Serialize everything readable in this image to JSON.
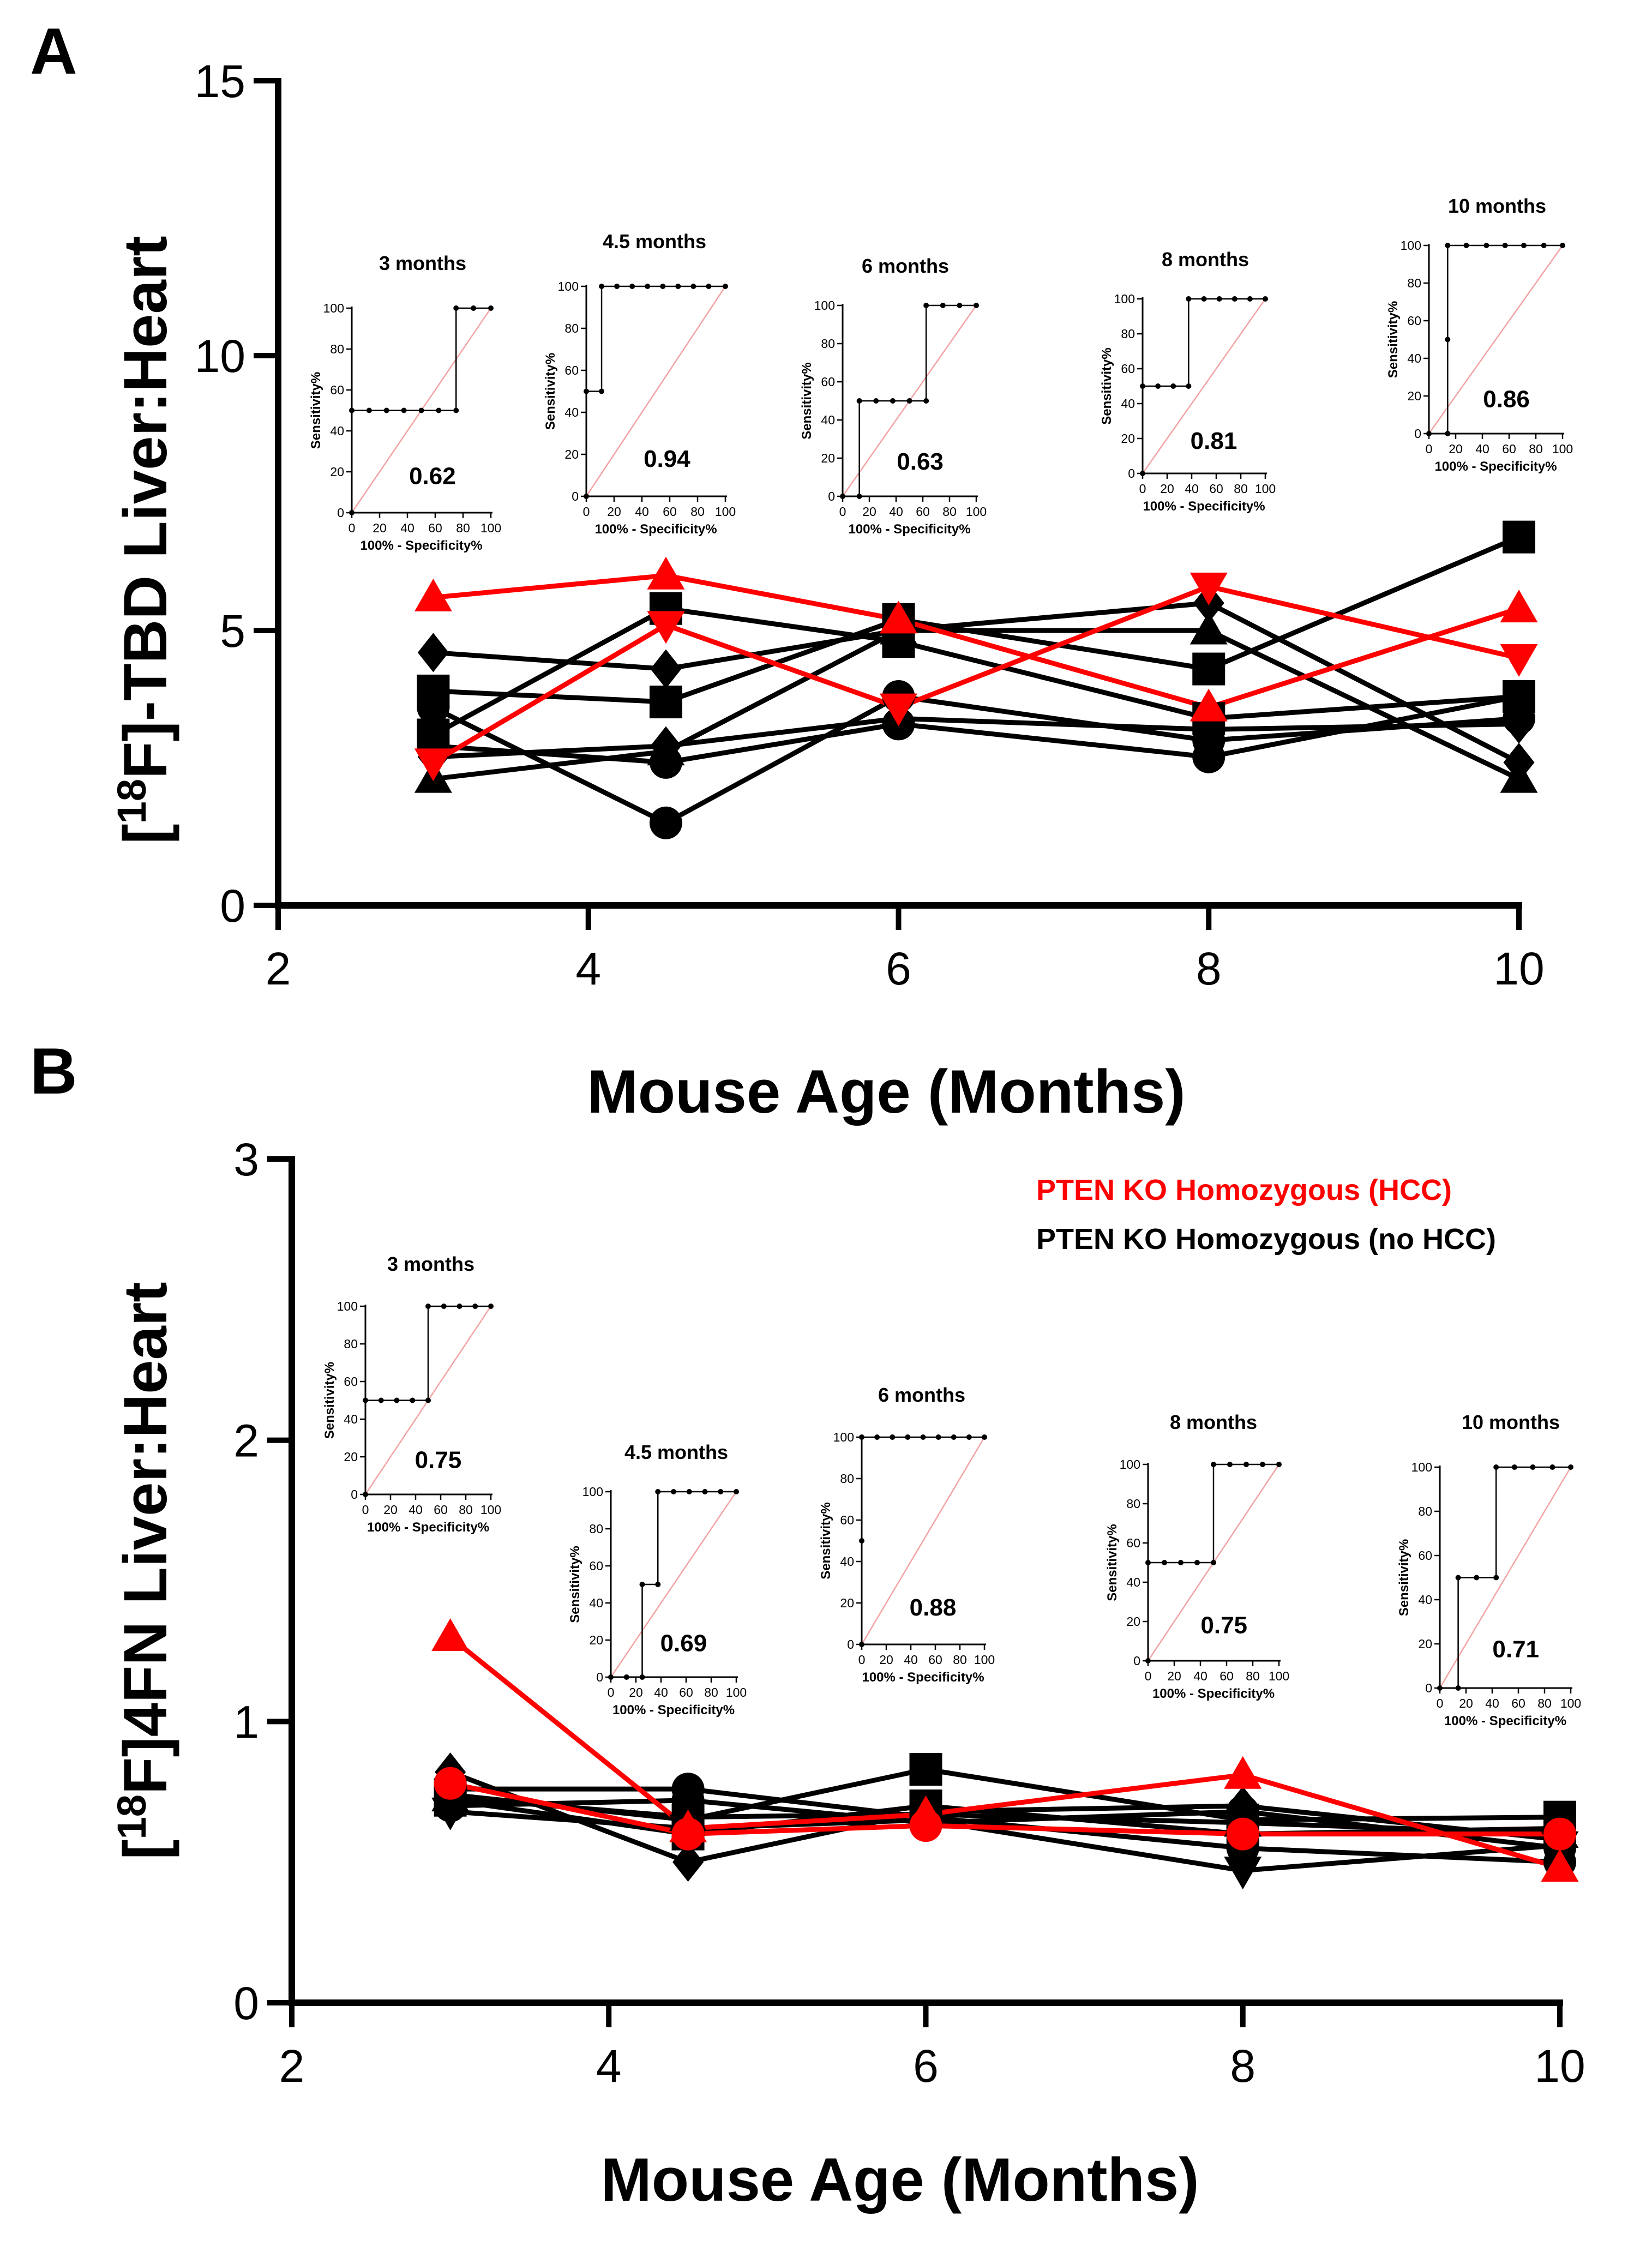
{
  "colors": {
    "hcc": "#ff0000",
    "no_hcc": "#000000",
    "diagonal": "#f3a3a3"
  },
  "chart_data": [
    {
      "panel": "A",
      "type": "line",
      "xlabel": "Mouse Age (Months)",
      "ylabel_parts": [
        "[",
        "18",
        "F]-TBD Liver:Heart"
      ],
      "xlim": [
        2,
        10
      ],
      "ylim": [
        0,
        15
      ],
      "xticks": [
        2,
        4,
        6,
        8,
        10
      ],
      "yticks": [
        0,
        5,
        10,
        15
      ],
      "x": [
        3,
        4.5,
        6,
        8,
        10
      ],
      "series": [
        {
          "name": "HCC",
          "group": "hcc",
          "marker": "triangle",
          "values": [
            5.6,
            6.0,
            5.2,
            3.6,
            5.4
          ]
        },
        {
          "name": "HCC",
          "group": "hcc",
          "marker": "triangle-down",
          "values": [
            2.6,
            5.1,
            3.6,
            5.8,
            4.5
          ]
        },
        {
          "name": "no HCC",
          "group": "no_hcc",
          "marker": "square",
          "values": [
            3.9,
            3.7,
            5.2,
            4.3,
            6.7
          ]
        },
        {
          "name": "no HCC",
          "group": "no_hcc",
          "marker": "square",
          "values": [
            3.1,
            5.4,
            4.8,
            3.4,
            3.8
          ]
        },
        {
          "name": "no HCC",
          "group": "no_hcc",
          "marker": "circle",
          "values": [
            3.6,
            1.5,
            3.8,
            3.0,
            3.4
          ]
        },
        {
          "name": "no HCC",
          "group": "no_hcc",
          "marker": "circle",
          "values": [
            2.9,
            2.6,
            3.3,
            2.7,
            3.8
          ]
        },
        {
          "name": "no HCC",
          "group": "no_hcc",
          "marker": "diamond",
          "values": [
            4.6,
            4.3,
            5.0,
            5.5,
            2.6
          ]
        },
        {
          "name": "no HCC",
          "group": "no_hcc",
          "marker": "diamond",
          "values": [
            2.7,
            2.9,
            3.4,
            3.2,
            3.3
          ]
        },
        {
          "name": "no HCC",
          "group": "no_hcc",
          "marker": "triangle",
          "values": [
            2.3,
            2.8,
            5.0,
            5.0,
            2.3
          ]
        }
      ],
      "insets": [
        {
          "title": "3 months",
          "auc": "0.62",
          "ylabel": "Sensitivity%",
          "xlabel": "100% - Specificity%",
          "ticks": [
            "0",
            "20",
            "40",
            "60",
            "80",
            "100"
          ],
          "roc": [
            [
              0,
              0
            ],
            [
              0,
              50
            ],
            [
              12.5,
              50
            ],
            [
              25,
              50
            ],
            [
              37.5,
              50
            ],
            [
              50,
              50
            ],
            [
              62.5,
              50
            ],
            [
              75,
              50
            ],
            [
              75,
              100
            ],
            [
              87.5,
              100
            ],
            [
              100,
              100
            ]
          ]
        },
        {
          "title": "4.5 months",
          "auc": "0.94",
          "ylabel": "Sensitivity%",
          "xlabel": "100% - Specificity%",
          "ticks": [
            "0",
            "20",
            "40",
            "60",
            "80",
            "100"
          ],
          "roc": [
            [
              0,
              0
            ],
            [
              0,
              50
            ],
            [
              11,
              50
            ],
            [
              11,
              100
            ],
            [
              22,
              100
            ],
            [
              33,
              100
            ],
            [
              44,
              100
            ],
            [
              55,
              100
            ],
            [
              66,
              100
            ],
            [
              77,
              100
            ],
            [
              88,
              100
            ],
            [
              100,
              100
            ]
          ]
        },
        {
          "title": "6 months",
          "auc": "0.63",
          "ylabel": "Sensitivity%",
          "xlabel": "100% - Specificity%",
          "ticks": [
            "0",
            "20",
            "40",
            "60",
            "80",
            "100"
          ],
          "roc": [
            [
              0,
              0
            ],
            [
              12.5,
              0
            ],
            [
              12.5,
              50
            ],
            [
              25,
              50
            ],
            [
              37.5,
              50
            ],
            [
              50,
              50
            ],
            [
              62.5,
              50
            ],
            [
              62.5,
              100
            ],
            [
              75,
              100
            ],
            [
              87.5,
              100
            ],
            [
              100,
              100
            ]
          ]
        },
        {
          "title": "8 months",
          "auc": "0.81",
          "ylabel": "Sensitivity%",
          "xlabel": "100% - Specificity%",
          "ticks": [
            "0",
            "20",
            "40",
            "60",
            "80",
            "100"
          ],
          "roc": [
            [
              0,
              0
            ],
            [
              0,
              50
            ],
            [
              12.5,
              50
            ],
            [
              25,
              50
            ],
            [
              37.5,
              50
            ],
            [
              37.5,
              100
            ],
            [
              50,
              100
            ],
            [
              62.5,
              100
            ],
            [
              75,
              100
            ],
            [
              87.5,
              100
            ],
            [
              100,
              100
            ]
          ]
        },
        {
          "title": "10 months",
          "auc": "0.86",
          "ylabel": "Sensitivity%",
          "xlabel": "100% - Specificity%",
          "ticks": [
            "0",
            "20",
            "40",
            "60",
            "80",
            "100"
          ],
          "roc": [
            [
              0,
              0
            ],
            [
              14,
              0
            ],
            [
              14,
              50
            ],
            [
              14,
              100
            ],
            [
              28,
              100
            ],
            [
              43,
              100
            ],
            [
              57,
              100
            ],
            [
              71,
              100
            ],
            [
              86,
              100
            ],
            [
              100,
              100
            ]
          ]
        }
      ]
    },
    {
      "panel": "B",
      "type": "line",
      "xlabel": "Mouse Age (Months)",
      "ylabel_parts": [
        "[",
        "18",
        "F]4FN  Liver:Heart"
      ],
      "xlim": [
        2,
        10
      ],
      "ylim": [
        0,
        3
      ],
      "xticks": [
        2,
        4,
        6,
        8,
        10
      ],
      "yticks": [
        0,
        1,
        2,
        3
      ],
      "x": [
        3,
        4.5,
        6,
        8,
        10
      ],
      "legend": [
        "PTEN KO Homozygous (HCC)",
        "PTEN KO Homozygous (no HCC)"
      ],
      "series": [
        {
          "name": "HCC",
          "group": "hcc",
          "marker": "triangle",
          "values": [
            1.3,
            0.62,
            0.67,
            0.81,
            0.48
          ]
        },
        {
          "name": "HCC",
          "group": "hcc",
          "marker": "circle",
          "values": [
            0.78,
            0.6,
            0.63,
            0.6,
            0.6
          ]
        },
        {
          "name": "no HCC",
          "group": "no_hcc",
          "marker": "square",
          "values": [
            0.74,
            0.65,
            0.83,
            0.65,
            0.66
          ]
        },
        {
          "name": "no HCC",
          "group": "no_hcc",
          "marker": "square",
          "values": [
            0.72,
            0.6,
            0.7,
            0.6,
            0.62
          ]
        },
        {
          "name": "no HCC",
          "group": "no_hcc",
          "marker": "circle",
          "values": [
            0.76,
            0.76,
            0.66,
            0.55,
            0.5
          ]
        },
        {
          "name": "no HCC",
          "group": "no_hcc",
          "marker": "circle",
          "values": [
            0.7,
            0.72,
            0.64,
            0.68,
            0.55
          ]
        },
        {
          "name": "no HCC",
          "group": "no_hcc",
          "marker": "diamond",
          "values": [
            0.82,
            0.5,
            0.68,
            0.7,
            0.58
          ]
        },
        {
          "name": "no HCC",
          "group": "no_hcc",
          "marker": "triangle-down",
          "values": [
            0.68,
            0.62,
            0.65,
            0.47,
            0.56
          ]
        },
        {
          "name": "no HCC",
          "group": "no_hcc",
          "marker": "triangle",
          "values": [
            0.73,
            0.66,
            0.67,
            0.64,
            0.6
          ]
        }
      ],
      "insets": [
        {
          "title": "3 months",
          "auc": "0.75",
          "ylabel": "Sensitivity%",
          "xlabel": "100% - Specificity%",
          "ticks": [
            "0",
            "20",
            "40",
            "60",
            "80",
            "100"
          ],
          "roc": [
            [
              0,
              0
            ],
            [
              0,
              50
            ],
            [
              12.5,
              50
            ],
            [
              25,
              50
            ],
            [
              37.5,
              50
            ],
            [
              50,
              50
            ],
            [
              50,
              100
            ],
            [
              62.5,
              100
            ],
            [
              75,
              100
            ],
            [
              87.5,
              100
            ],
            [
              100,
              100
            ]
          ]
        },
        {
          "title": "4.5 months",
          "auc": "0.69",
          "ylabel": "Sensitivity%",
          "xlabel": "100% - Specificity%",
          "ticks": [
            "0",
            "20",
            "40",
            "60",
            "80",
            "100"
          ],
          "roc": [
            [
              0,
              0
            ],
            [
              12.5,
              0
            ],
            [
              25,
              0
            ],
            [
              25,
              50
            ],
            [
              37.5,
              50
            ],
            [
              37.5,
              100
            ],
            [
              50,
              100
            ],
            [
              62.5,
              100
            ],
            [
              75,
              100
            ],
            [
              87.5,
              100
            ],
            [
              100,
              100
            ]
          ]
        },
        {
          "title": "6 months",
          "auc": "0.88",
          "ylabel": "Sensitivity%",
          "xlabel": "100% - Specificity%",
          "ticks": [
            "0",
            "20",
            "40",
            "60",
            "80",
            "100"
          ],
          "roc": [
            [
              0,
              0
            ],
            [
              0,
              50
            ],
            [
              0,
              100
            ],
            [
              12.5,
              100
            ],
            [
              25,
              100
            ],
            [
              37.5,
              100
            ],
            [
              50,
              100
            ],
            [
              62.5,
              100
            ],
            [
              75,
              100
            ],
            [
              87.5,
              100
            ],
            [
              100,
              100
            ]
          ]
        },
        {
          "title": "8 months",
          "auc": "0.75",
          "ylabel": "Sensitivity%",
          "xlabel": "100% - Specificity%",
          "ticks": [
            "0",
            "20",
            "40",
            "60",
            "80",
            "100"
          ],
          "roc": [
            [
              0,
              0
            ],
            [
              0,
              50
            ],
            [
              12.5,
              50
            ],
            [
              25,
              50
            ],
            [
              37.5,
              50
            ],
            [
              50,
              50
            ],
            [
              50,
              100
            ],
            [
              62.5,
              100
            ],
            [
              75,
              100
            ],
            [
              87.5,
              100
            ],
            [
              100,
              100
            ]
          ]
        },
        {
          "title": "10 months",
          "auc": "0.71",
          "ylabel": "Sensitivity%",
          "xlabel": "100% - Specificity%",
          "ticks": [
            "0",
            "20",
            "40",
            "60",
            "80",
            "100"
          ],
          "roc": [
            [
              0,
              0
            ],
            [
              14,
              0
            ],
            [
              14,
              50
            ],
            [
              28,
              50
            ],
            [
              43,
              50
            ],
            [
              43,
              100
            ],
            [
              57,
              100
            ],
            [
              71,
              100
            ],
            [
              86,
              100
            ],
            [
              100,
              100
            ]
          ]
        }
      ]
    }
  ]
}
